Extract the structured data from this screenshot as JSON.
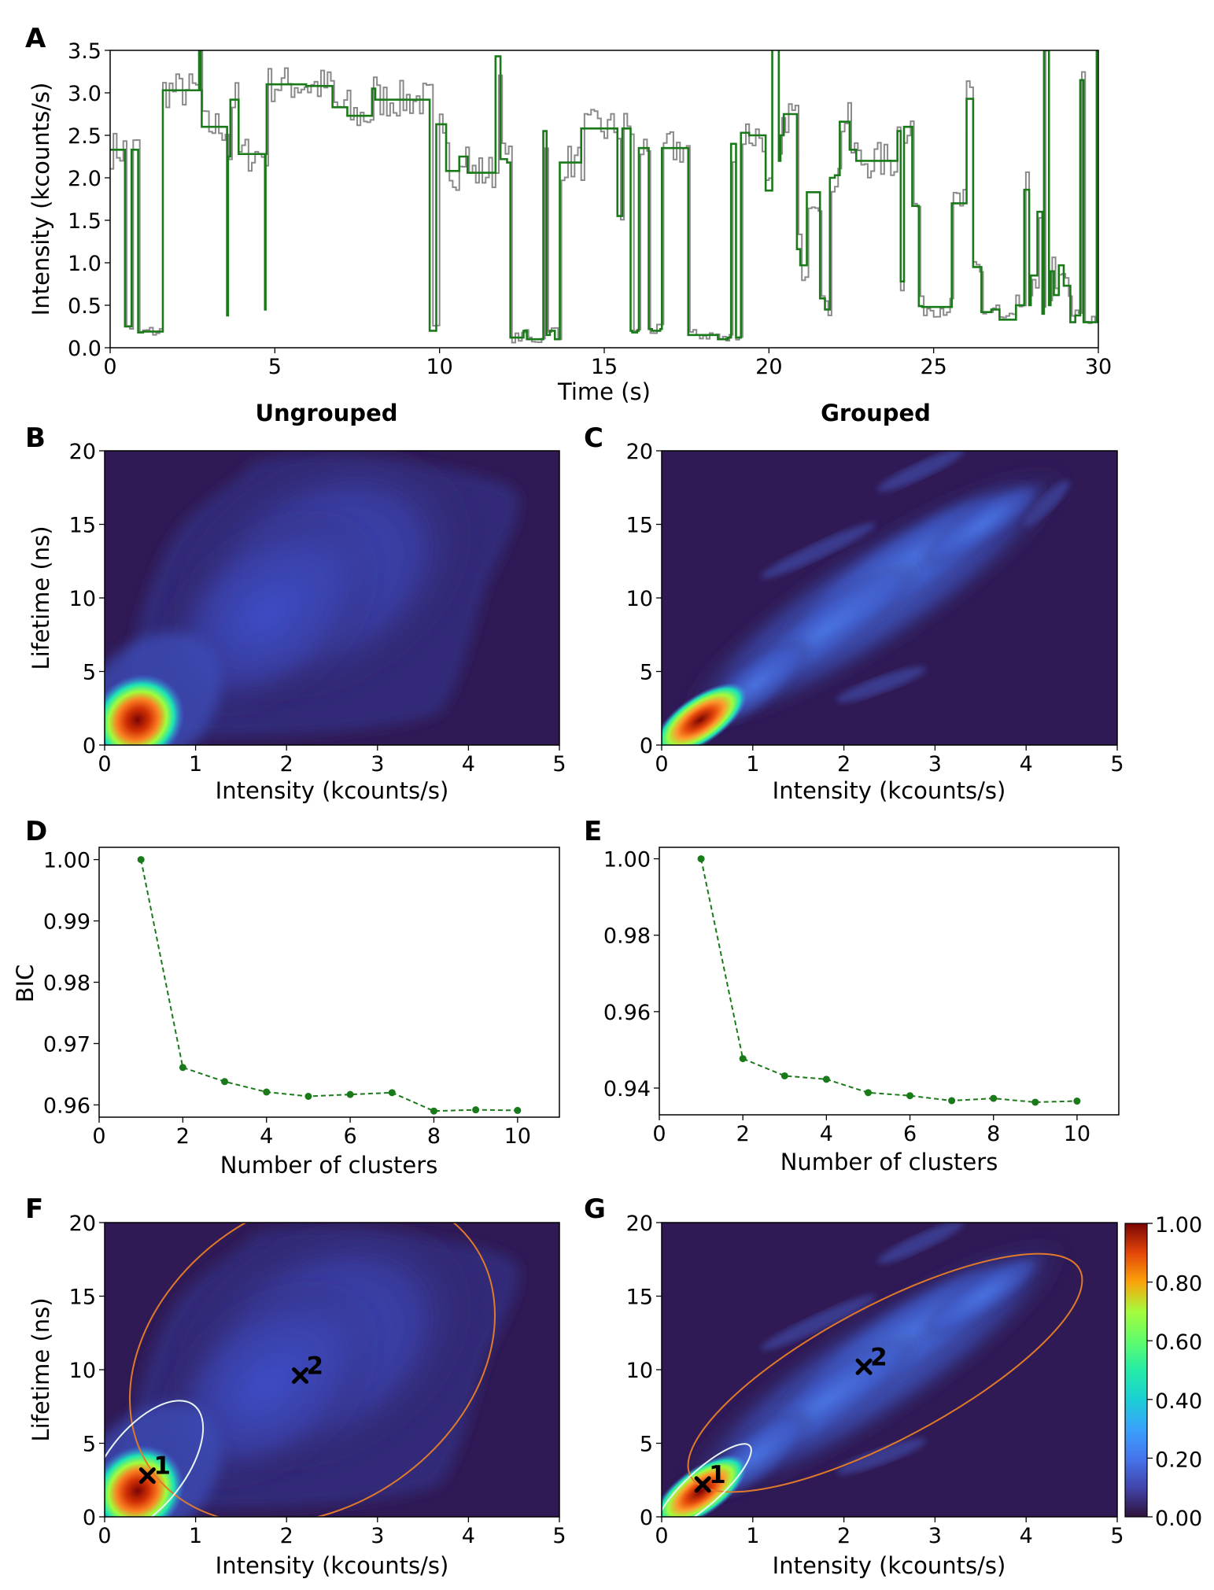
{
  "panel_labels": {
    "A": "A",
    "B": "B",
    "C": "C",
    "D": "D",
    "E": "E",
    "F": "F",
    "G": "G"
  },
  "column_titles": {
    "left": "Ungrouped",
    "right": "Grouped"
  },
  "colors": {
    "trace_raw": "#8a8a8a",
    "trace_levels": "#1a7a1a",
    "bic_series": "#1a7a1a",
    "ellipse_cluster1": "#e8f4f0",
    "ellipse_cluster2": "#e07a2a",
    "background_density": "#2f1a55"
  },
  "colorbar": {
    "ticks": [
      "0.00",
      "0.20",
      "0.40",
      "0.60",
      "0.80",
      "1.00"
    ],
    "colormap": "turbo"
  },
  "chart_data": [
    {
      "id": "A",
      "type": "line",
      "xlabel": "Time (s)",
      "ylabel": "Intensity (kcounts/s)",
      "xlim": [
        0,
        30
      ],
      "ylim": [
        0,
        3.5
      ],
      "xticks": [
        "0",
        "5",
        "10",
        "15",
        "20",
        "25",
        "30"
      ],
      "yticks": [
        "0.0",
        "0.5",
        "1.0",
        "1.5",
        "2.0",
        "2.5",
        "3.0",
        "3.5"
      ],
      "series": [
        {
          "style": "step",
          "t": [
            0,
            0.45,
            0.65,
            0.85,
            1.0,
            1.6,
            2.7,
            2.75,
            2.78,
            3.55,
            3.58,
            3.65,
            3.9,
            4.7,
            4.72,
            4.75,
            5.95,
            6.75,
            7.2,
            7.95,
            8.05,
            8.05,
            9.7,
            9.9,
            10.2,
            10.6,
            10.85,
            11.7,
            11.85,
            12.05,
            12.15,
            12.55,
            12.65,
            13.15,
            13.25,
            13.35,
            13.5,
            13.65,
            14.3,
            15.4,
            15.55,
            15.8,
            15.85,
            16.0,
            16.05,
            16.35,
            16.45,
            16.7,
            16.75,
            17.5,
            17.55,
            18.15,
            18.45,
            18.5,
            18.75,
            18.85,
            19.0,
            19.15,
            19.4,
            19.9,
            20.1,
            20.3,
            20.35,
            20.45,
            20.85,
            20.95,
            21.15,
            21.45,
            21.55,
            21.7,
            21.85,
            22.0,
            22.15,
            22.45,
            22.65,
            23.9,
            24.0,
            24.1,
            24.35,
            24.55,
            24.65,
            25.35,
            25.55,
            26.0,
            26.2,
            26.45,
            26.75,
            27.0,
            27.05,
            27.5,
            27.75,
            27.9,
            27.95,
            28.15,
            28.3,
            28.35,
            28.5,
            28.55,
            28.65,
            28.8,
            28.95,
            29.15,
            29.3,
            29.45,
            29.55,
            29.95,
            30.0
          ],
          "values": [
            2.33,
            0.25,
            2.33,
            0.18,
            0.19,
            3.03,
            3.55,
            3.03,
            2.6,
            0.38,
            2.25,
            2.92,
            2.28,
            0.45,
            2.28,
            3.1,
            3.08,
            2.83,
            2.73,
            3.05,
            3.05,
            2.92,
            0.2,
            2.63,
            2.08,
            2.25,
            2.06,
            3.43,
            2.22,
            2.18,
            0.12,
            0.2,
            0.1,
            2.55,
            0.15,
            0.2,
            0.1,
            2.18,
            2.58,
            1.55,
            2.58,
            0.2,
            0.18,
            0.2,
            2.35,
            0.22,
            0.2,
            0.22,
            2.35,
            2.35,
            0.15,
            0.15,
            0.1,
            0.1,
            0.12,
            2.4,
            0.12,
            2.53,
            2.5,
            1.85,
            3.55,
            2.2,
            2.5,
            2.75,
            1.16,
            0.97,
            1.83,
            1.83,
            0.58,
            0.45,
            2.0,
            2.03,
            2.66,
            2.33,
            2.2,
            2.55,
            0.78,
            2.6,
            1.67,
            0.49,
            0.48,
            0.48,
            1.7,
            2.93,
            0.95,
            0.42,
            0.45,
            0.33,
            0.33,
            0.5,
            1.86,
            0.5,
            0.85,
            1.6,
            0.4,
            3.5,
            0.5,
            0.9,
            0.62,
            0.97,
            0.73,
            0.3,
            0.38,
            3.15,
            0.3,
            3.5,
            3.5
          ]
        }
      ]
    },
    {
      "id": "B",
      "type": "heatmap",
      "xlabel": "Intensity (kcounts/s)",
      "ylabel": "Lifetime (ns)",
      "xlim": [
        0,
        5
      ],
      "ylim": [
        0,
        20
      ],
      "xticks": [
        "0",
        "1",
        "2",
        "3",
        "4",
        "5"
      ],
      "yticks": [
        "0",
        "5",
        "10",
        "15",
        "20"
      ],
      "peak": {
        "x": 0.3,
        "y": 1.5,
        "z": 1.0
      }
    },
    {
      "id": "C",
      "type": "heatmap",
      "xlabel": "Intensity (kcounts/s)",
      "ylabel": "",
      "xlim": [
        0,
        5
      ],
      "ylim": [
        0,
        20
      ],
      "xticks": [
        "0",
        "1",
        "2",
        "3",
        "4",
        "5"
      ],
      "yticks": [
        "0",
        "5",
        "10",
        "15",
        "20"
      ],
      "peak": {
        "x": 0.3,
        "y": 1.5,
        "z": 1.0
      }
    },
    {
      "id": "D",
      "type": "line",
      "xlabel": "Number of clusters",
      "ylabel": "BIC",
      "xlim": [
        0,
        11
      ],
      "ylim": [
        0.958,
        1.002
      ],
      "xticks": [
        "0",
        "2",
        "4",
        "6",
        "8",
        "10"
      ],
      "yticks": [
        "0.96",
        "0.97",
        "0.98",
        "0.99",
        "1.00"
      ],
      "x": [
        1,
        2,
        3,
        4,
        5,
        6,
        7,
        8,
        9,
        10
      ],
      "series": [
        {
          "values": [
            1.0,
            0.9661,
            0.9638,
            0.9621,
            0.9614,
            0.9617,
            0.962,
            0.959,
            0.9592,
            0.9591
          ]
        }
      ]
    },
    {
      "id": "E",
      "type": "line",
      "xlabel": "Number of clusters",
      "ylabel": "",
      "xlim": [
        0,
        11
      ],
      "ylim": [
        0.933,
        1.003
      ],
      "xticks": [
        "0",
        "2",
        "4",
        "6",
        "8",
        "10"
      ],
      "yticks": [
        "0.94",
        "0.96",
        "0.98",
        "1.00"
      ],
      "x": [
        1,
        2,
        3,
        4,
        5,
        6,
        7,
        8,
        9,
        10
      ],
      "series": [
        {
          "values": [
            1.0,
            0.9477,
            0.9432,
            0.9423,
            0.9388,
            0.938,
            0.9367,
            0.9373,
            0.9363,
            0.9366
          ]
        }
      ]
    },
    {
      "id": "F",
      "type": "heatmap",
      "xlabel": "Intensity (kcounts/s)",
      "ylabel": "Lifetime (ns)",
      "xlim": [
        0,
        5
      ],
      "ylim": [
        0,
        20
      ],
      "xticks": [
        "0",
        "1",
        "2",
        "3",
        "4",
        "5"
      ],
      "yticks": [
        "0",
        "5",
        "10",
        "15",
        "20"
      ],
      "clusters": [
        {
          "label": "1",
          "cx": 0.47,
          "cy": 2.8
        },
        {
          "label": "2",
          "cx": 2.15,
          "cy": 9.6
        }
      ]
    },
    {
      "id": "G",
      "type": "heatmap",
      "xlabel": "Intensity (kcounts/s)",
      "ylabel": "",
      "xlim": [
        0,
        5
      ],
      "ylim": [
        0,
        20
      ],
      "xticks": [
        "0",
        "1",
        "2",
        "3",
        "4",
        "5"
      ],
      "yticks": [
        "0",
        "5",
        "10",
        "15",
        "20"
      ],
      "clusters": [
        {
          "label": "1",
          "cx": 0.45,
          "cy": 2.2
        },
        {
          "label": "2",
          "cx": 2.22,
          "cy": 10.2
        }
      ]
    }
  ]
}
